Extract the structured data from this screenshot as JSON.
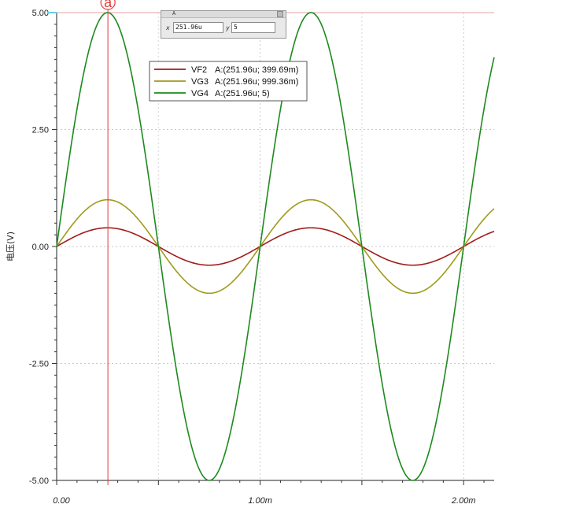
{
  "chart_data": {
    "type": "line",
    "title": "",
    "xlabel": "",
    "ylabel": "电压(V)",
    "xlim": [
      0,
      0.00215
    ],
    "ylim": [
      -5,
      5
    ],
    "y_ticks": [
      {
        "value": 5,
        "label": "5.00"
      },
      {
        "value": 2.5,
        "label": "2.50"
      },
      {
        "value": 0,
        "label": "0.00"
      },
      {
        "value": -2.5,
        "label": "-2.50"
      },
      {
        "value": -5,
        "label": "-5.00"
      }
    ],
    "x_ticks": [
      {
        "value": 0,
        "label": "0.00"
      },
      {
        "value": 0.001,
        "label": "1.00m"
      },
      {
        "value": 0.002,
        "label": "2.00m"
      }
    ],
    "grid": true,
    "legend_position": "top-center",
    "series": [
      {
        "name": "VF2",
        "amplitude": 0.39969,
        "frequency_hz": 1000,
        "color": "#a01c1c",
        "readout": "A:(251.96u; 399.69m)"
      },
      {
        "name": "VG3",
        "amplitude": 0.99936,
        "frequency_hz": 1000,
        "color": "#a09a1c",
        "readout": "A:(251.96u; 999.36m)"
      },
      {
        "name": "VG4",
        "amplitude": 5,
        "frequency_hz": 1000,
        "color": "#1e8a1e",
        "readout": "A:(251.96u; 5)"
      }
    ],
    "cursor": {
      "x": 0.00025196,
      "label": "a",
      "color": "#e23b3b"
    }
  },
  "cursor_readout": {
    "title": "A",
    "x_label": "x",
    "x_value": "251.96u",
    "y_label": "y",
    "y_value": "5"
  }
}
